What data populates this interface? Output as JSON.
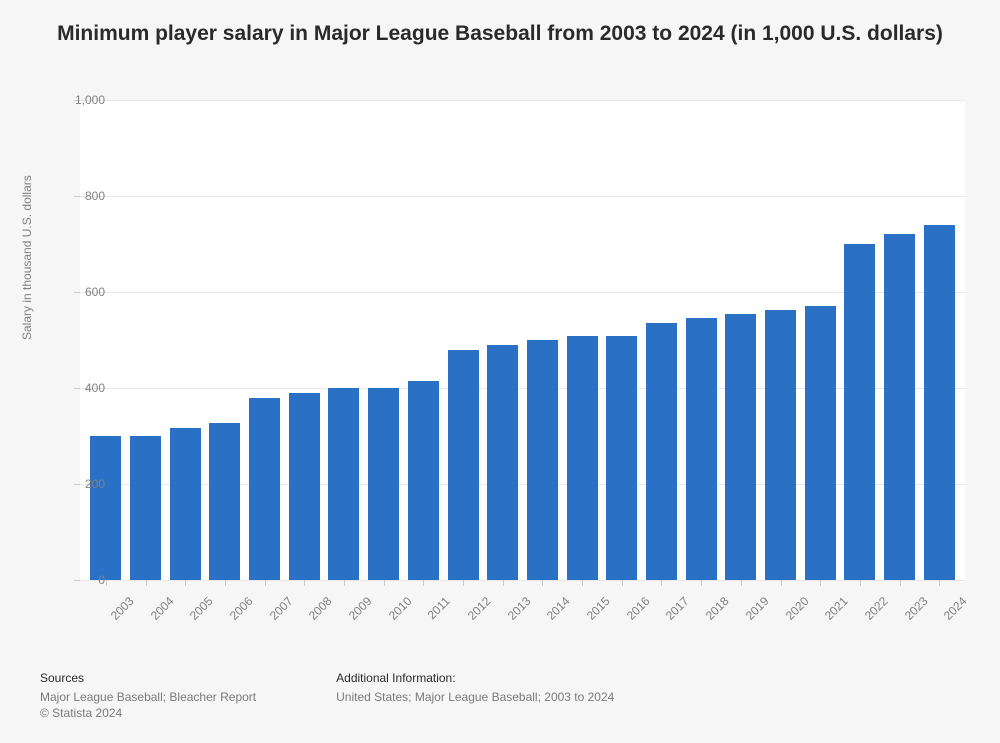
{
  "chart": {
    "type": "bar",
    "title": "Minimum player salary in Major League Baseball from 2003 to 2024 (in 1,000 U.S. dollars)",
    "title_fontsize": 21,
    "title_color": "#2a2a2a",
    "ylabel": "Salary in thousand U.S. dollars",
    "ylabel_fontsize": 12,
    "ylabel_color": "#808080",
    "background_color": "#f6f6f6",
    "plot_background_color": "#ffffff",
    "bar_color": "#2a71c6",
    "grid_color": "#e8e8e8",
    "axis_tick_color": "#cccccc",
    "xlabel_fontsize": 12,
    "xlabel_color": "#808080",
    "ylim": [
      0,
      1000
    ],
    "ytick_step": 200,
    "yticks": [
      0,
      200,
      400,
      600,
      800,
      1000
    ],
    "ytick_labels": [
      "0",
      "200",
      "400",
      "600",
      "800",
      "1,000"
    ],
    "categories": [
      "2003",
      "2004",
      "2005",
      "2006",
      "2007",
      "2008",
      "2009",
      "2010",
      "2011",
      "2012",
      "2013",
      "2014",
      "2015",
      "2016",
      "2017",
      "2018",
      "2019",
      "2020",
      "2021",
      "2022",
      "2023",
      "2024"
    ],
    "values": [
      300,
      300,
      316,
      327,
      380,
      390,
      400,
      400,
      414,
      480,
      490,
      500,
      507.5,
      507.5,
      535,
      545,
      555,
      563.5,
      570.5,
      700,
      720,
      740
    ],
    "bar_width_ratio": 0.78,
    "x_label_rotation": -45
  },
  "footer": {
    "sources_heading": "Sources",
    "sources_line1": "Major League Baseball; Bleacher Report",
    "sources_line2": "© Statista 2024",
    "info_heading": "Additional Information:",
    "info_line1": "United States; Major League Baseball; 2003 to 2024",
    "fontsize": 12,
    "heading_color": "#2a2a2a",
    "text_color": "#7a7a7a"
  }
}
